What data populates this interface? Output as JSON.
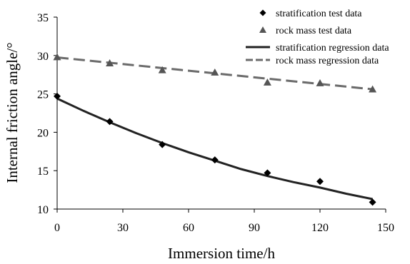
{
  "chart_data": {
    "type": "scatter",
    "xlabel": "Immersion time/h",
    "ylabel": "Internal friction angle/°",
    "xlim": [
      0,
      150
    ],
    "ylim": [
      10,
      35
    ],
    "x_ticks": [
      "0",
      "30",
      "60",
      "90",
      "120",
      "150"
    ],
    "y_ticks": [
      "10",
      "15",
      "20",
      "25",
      "30",
      "35"
    ],
    "grid": false,
    "legend_position": "top-right",
    "series": [
      {
        "name": "stratification test data",
        "kind": "scatter",
        "marker": "diamond",
        "color": "#000000",
        "x": [
          0,
          24,
          48,
          72,
          96,
          120,
          144
        ],
        "y": [
          24.7,
          21.4,
          18.4,
          16.4,
          14.7,
          13.6,
          10.9
        ]
      },
      {
        "name": "rock mass test data",
        "kind": "scatter",
        "marker": "triangle",
        "color": "#555555",
        "x": [
          0,
          24,
          48,
          72,
          96,
          120,
          144
        ],
        "y": [
          29.8,
          29.0,
          28.1,
          27.8,
          26.5,
          26.4,
          25.6
        ]
      },
      {
        "name": "stratification regression data",
        "kind": "line",
        "style": "solid",
        "color": "#222222",
        "x": [
          0,
          12,
          24,
          36,
          48,
          60,
          72,
          84,
          96,
          108,
          120,
          132,
          144
        ],
        "y": [
          24.4,
          22.8,
          21.3,
          19.9,
          18.6,
          17.4,
          16.3,
          15.2,
          14.3,
          13.5,
          12.8,
          12.0,
          11.3
        ]
      },
      {
        "name": "rock mass regression data",
        "kind": "line",
        "style": "dashed",
        "color": "#6b6b6b",
        "x": [
          0,
          144
        ],
        "y": [
          29.75,
          25.6
        ]
      }
    ]
  }
}
